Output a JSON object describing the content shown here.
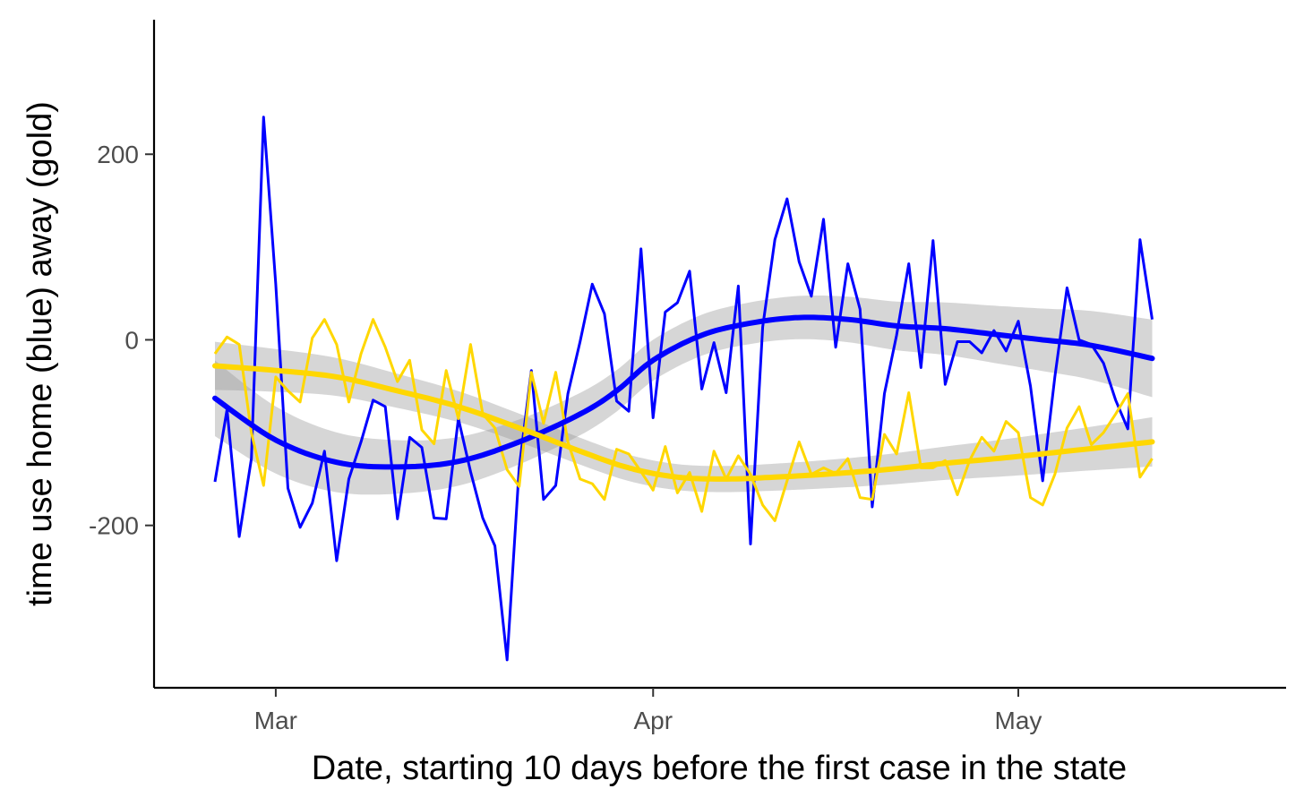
{
  "chart_data": {
    "type": "line",
    "xlabel": "Date, starting 10 days before the first case in the state",
    "ylabel": "time use home (blue) away (gold)",
    "xlim": [
      "2020-02-20",
      "2020-05-23"
    ],
    "ylim": [
      -375,
      345
    ],
    "x_ticks": [
      {
        "date": "2020-03-01",
        "label": "Mar"
      },
      {
        "date": "2020-04-01",
        "label": "Apr"
      },
      {
        "date": "2020-05-01",
        "label": "May"
      }
    ],
    "y_ticks": [
      {
        "value": 200,
        "label": "200"
      },
      {
        "value": 0,
        "label": "0"
      },
      {
        "value": -200,
        "label": "-200"
      }
    ],
    "grid": false,
    "legend": "none",
    "x_start": "2020-02-25",
    "x_step_days": 1,
    "series": [
      {
        "color": "#0000ff",
        "values": [
          -153,
          -75,
          -212,
          -128,
          240,
          60,
          -160,
          -202,
          -176,
          -120,
          -238,
          -150,
          -110,
          -65,
          -72,
          -193,
          -105,
          -116,
          -192,
          -193,
          -85,
          -142,
          -192,
          -222,
          -345,
          -138,
          -33,
          -172,
          -157,
          -58,
          -2,
          60,
          28,
          -66,
          -77,
          98,
          -84,
          30,
          40,
          74,
          -53,
          -3,
          -57,
          58,
          -220,
          14,
          108,
          152,
          84,
          47,
          130,
          -8,
          82,
          33,
          -180,
          -58,
          5,
          82,
          -30,
          107,
          -48,
          -2,
          -2,
          -14,
          10,
          -12,
          20,
          -50,
          -152,
          -40,
          56,
          0,
          -5,
          -25,
          -65,
          -96,
          108,
          22
        ]
      },
      {
        "color": "#ffd700",
        "values": [
          -15,
          3,
          -5,
          -100,
          -157,
          -40,
          -55,
          -67,
          2,
          22,
          -5,
          -67,
          -15,
          22,
          -8,
          -45,
          -22,
          -97,
          -112,
          -33,
          -85,
          -5,
          -80,
          -95,
          -140,
          -158,
          -35,
          -90,
          -35,
          -110,
          -150,
          -155,
          -172,
          -118,
          -123,
          -142,
          -162,
          -115,
          -165,
          -143,
          -185,
          -120,
          -150,
          -125,
          -145,
          -178,
          -195,
          -152,
          -110,
          -145,
          -138,
          -144,
          -128,
          -170,
          -172,
          -102,
          -123,
          -57,
          -138,
          -138,
          -130,
          -167,
          -130,
          -105,
          -120,
          -88,
          -100,
          -170,
          -178,
          -145,
          -95,
          -72,
          -113,
          -100,
          -80,
          -58,
          -148,
          -128
        ]
      }
    ],
    "smoothed": [
      {
        "color": "#0000ff",
        "points": [
          [
            0,
            -63
          ],
          [
            5,
            -108
          ],
          [
            10,
            -132
          ],
          [
            15,
            -137
          ],
          [
            20,
            -131
          ],
          [
            25,
            -110
          ],
          [
            30,
            -80
          ],
          [
            33,
            -55
          ],
          [
            36,
            -22
          ],
          [
            40,
            5
          ],
          [
            44,
            18
          ],
          [
            48,
            24
          ],
          [
            52,
            22
          ],
          [
            56,
            15
          ],
          [
            60,
            12
          ],
          [
            64,
            6
          ],
          [
            68,
            0
          ],
          [
            72,
            -6
          ],
          [
            77,
            -20
          ]
        ],
        "band": 22
      },
      {
        "color": "#ffd700",
        "points": [
          [
            0,
            -28
          ],
          [
            5,
            -33
          ],
          [
            10,
            -40
          ],
          [
            15,
            -55
          ],
          [
            20,
            -72
          ],
          [
            25,
            -95
          ],
          [
            30,
            -120
          ],
          [
            34,
            -138
          ],
          [
            38,
            -148
          ],
          [
            42,
            -150
          ],
          [
            46,
            -148
          ],
          [
            50,
            -145
          ],
          [
            55,
            -140
          ],
          [
            60,
            -133
          ],
          [
            65,
            -127
          ],
          [
            70,
            -120
          ],
          [
            77,
            -110
          ]
        ],
        "band": 14
      }
    ]
  }
}
